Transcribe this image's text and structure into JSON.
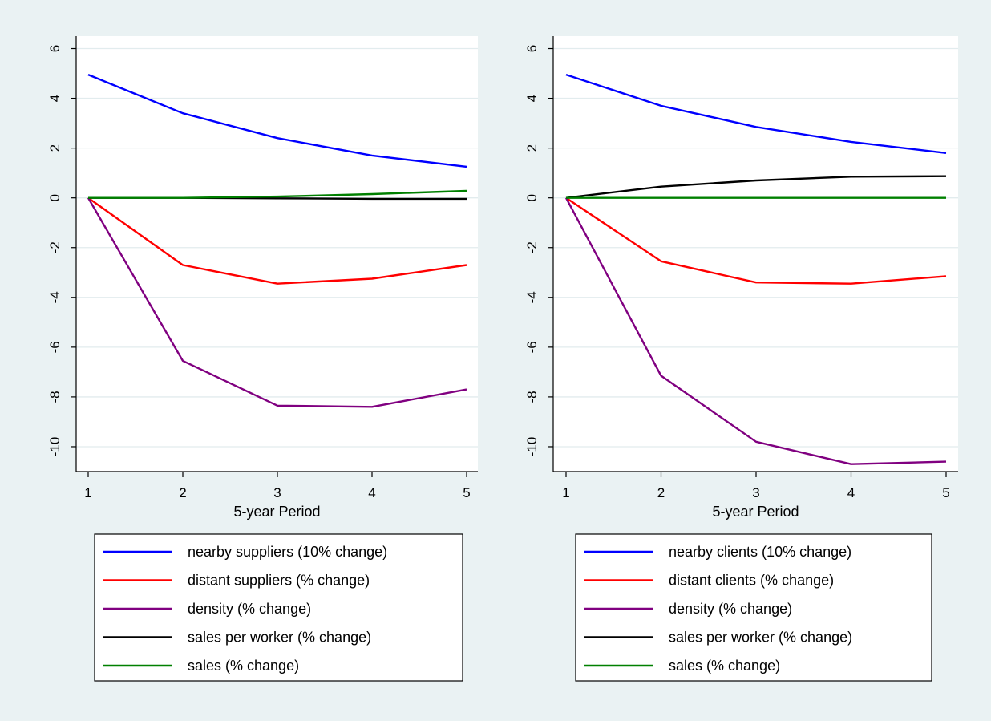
{
  "chart_data": [
    {
      "type": "line",
      "x": [
        1,
        2,
        3,
        4,
        5
      ],
      "xlabel": "5-year Period",
      "ylabel": "",
      "ylim": [
        -11,
        6.5
      ],
      "yticks": [
        6,
        4,
        2,
        0,
        -2,
        -4,
        -6,
        -8,
        -10
      ],
      "xticks": [
        1,
        2,
        3,
        4,
        5
      ],
      "grid": true,
      "legend_position": "bottom",
      "series": [
        {
          "name": "nearby suppliers (10% change)",
          "color": "#0000ff",
          "values": [
            4.95,
            3.4,
            2.4,
            1.7,
            1.25
          ]
        },
        {
          "name": "distant suppliers (% change)",
          "color": "#ff0000",
          "values": [
            0,
            -2.7,
            -3.45,
            -3.25,
            -2.7
          ]
        },
        {
          "name": "density (% change)",
          "color": "#800080",
          "values": [
            0,
            -6.55,
            -8.35,
            -8.4,
            -7.7
          ]
        },
        {
          "name": "sales per worker (% change)",
          "color": "#000000",
          "values": [
            0,
            0,
            -0.02,
            -0.04,
            -0.04
          ]
        },
        {
          "name": "sales (% change)",
          "color": "#008000",
          "values": [
            0,
            0,
            0.05,
            0.15,
            0.28
          ]
        }
      ]
    },
    {
      "type": "line",
      "x": [
        1,
        2,
        3,
        4,
        5
      ],
      "xlabel": "5-year Period",
      "ylabel": "",
      "ylim": [
        -11,
        6.5
      ],
      "yticks": [
        6,
        4,
        2,
        0,
        -2,
        -4,
        -6,
        -8,
        -10
      ],
      "xticks": [
        1,
        2,
        3,
        4,
        5
      ],
      "grid": true,
      "legend_position": "bottom",
      "series": [
        {
          "name": "nearby clients (10% change)",
          "color": "#0000ff",
          "values": [
            4.95,
            3.7,
            2.85,
            2.25,
            1.8
          ]
        },
        {
          "name": "distant clients (% change)",
          "color": "#ff0000",
          "values": [
            0,
            -2.55,
            -3.4,
            -3.45,
            -3.15
          ]
        },
        {
          "name": "density (% change)",
          "color": "#800080",
          "values": [
            0,
            -7.15,
            -9.8,
            -10.7,
            -10.6
          ]
        },
        {
          "name": "sales per worker (% change)",
          "color": "#000000",
          "values": [
            0,
            0.45,
            0.7,
            0.85,
            0.87
          ]
        },
        {
          "name": "sales (% change)",
          "color": "#008000",
          "values": [
            0,
            0,
            0,
            0,
            0
          ]
        }
      ]
    }
  ],
  "colors": {
    "figure_background": "#eaf2f3",
    "plot_background": "#ffffff",
    "grid": "#e2ecee",
    "axis": "#000000"
  }
}
